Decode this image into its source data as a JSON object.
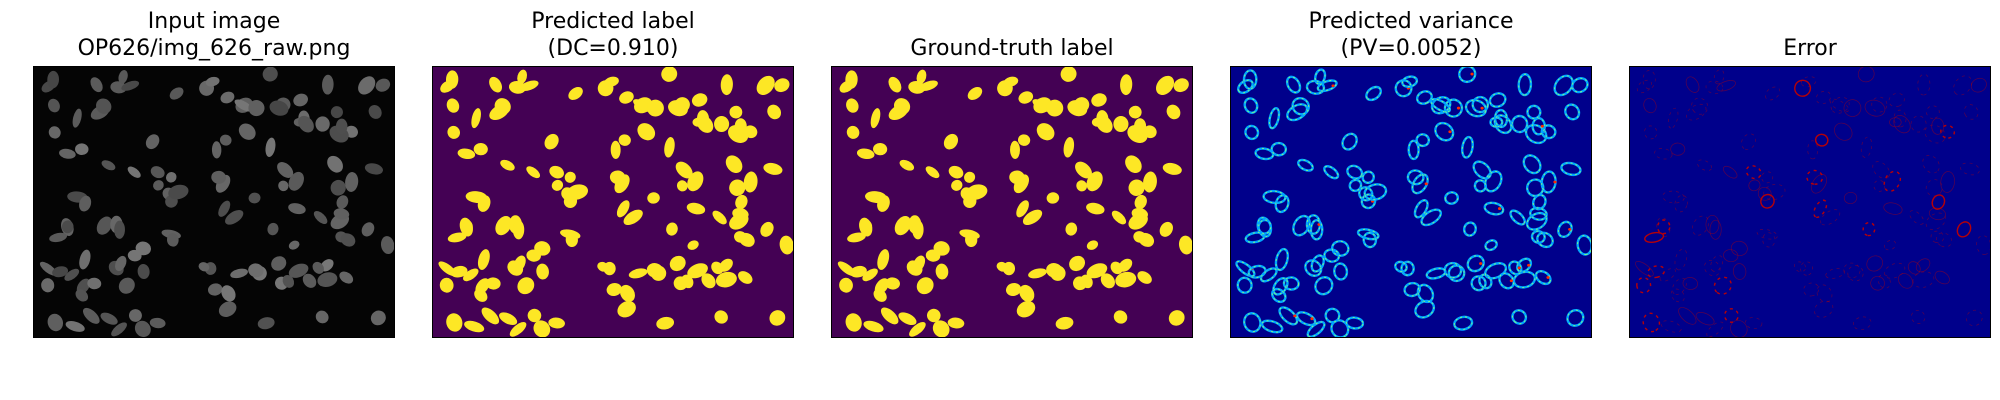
{
  "panels": [
    {
      "id": "input",
      "title_line1": "Input image",
      "title_line2": "OP626/img_626_raw.png",
      "visual": "grayscale-microscopy"
    },
    {
      "id": "predicted-label",
      "title_line1": "Predicted label",
      "title_line2": "(DC=0.910)",
      "visual": "binary-segmentation",
      "colors": {
        "background": "#440154",
        "foreground": "#fde725"
      }
    },
    {
      "id": "ground-truth",
      "title_line1": "Ground-truth label",
      "title_line2": "",
      "visual": "binary-segmentation",
      "colors": {
        "background": "#440154",
        "foreground": "#fde725"
      }
    },
    {
      "id": "predicted-variance",
      "title_line1": "Predicted variance",
      "title_line2": "(PV=0.0052)",
      "visual": "jet-uncertainty-map",
      "colors": {
        "background": "#00008b",
        "low": "#00a6ff",
        "mid": "#7fff7f",
        "high": "#ff2a00"
      }
    },
    {
      "id": "error",
      "title_line1": "Error",
      "title_line2": "",
      "visual": "error-map",
      "colors": {
        "background": "#00008b",
        "edge": "#c00000"
      }
    }
  ]
}
